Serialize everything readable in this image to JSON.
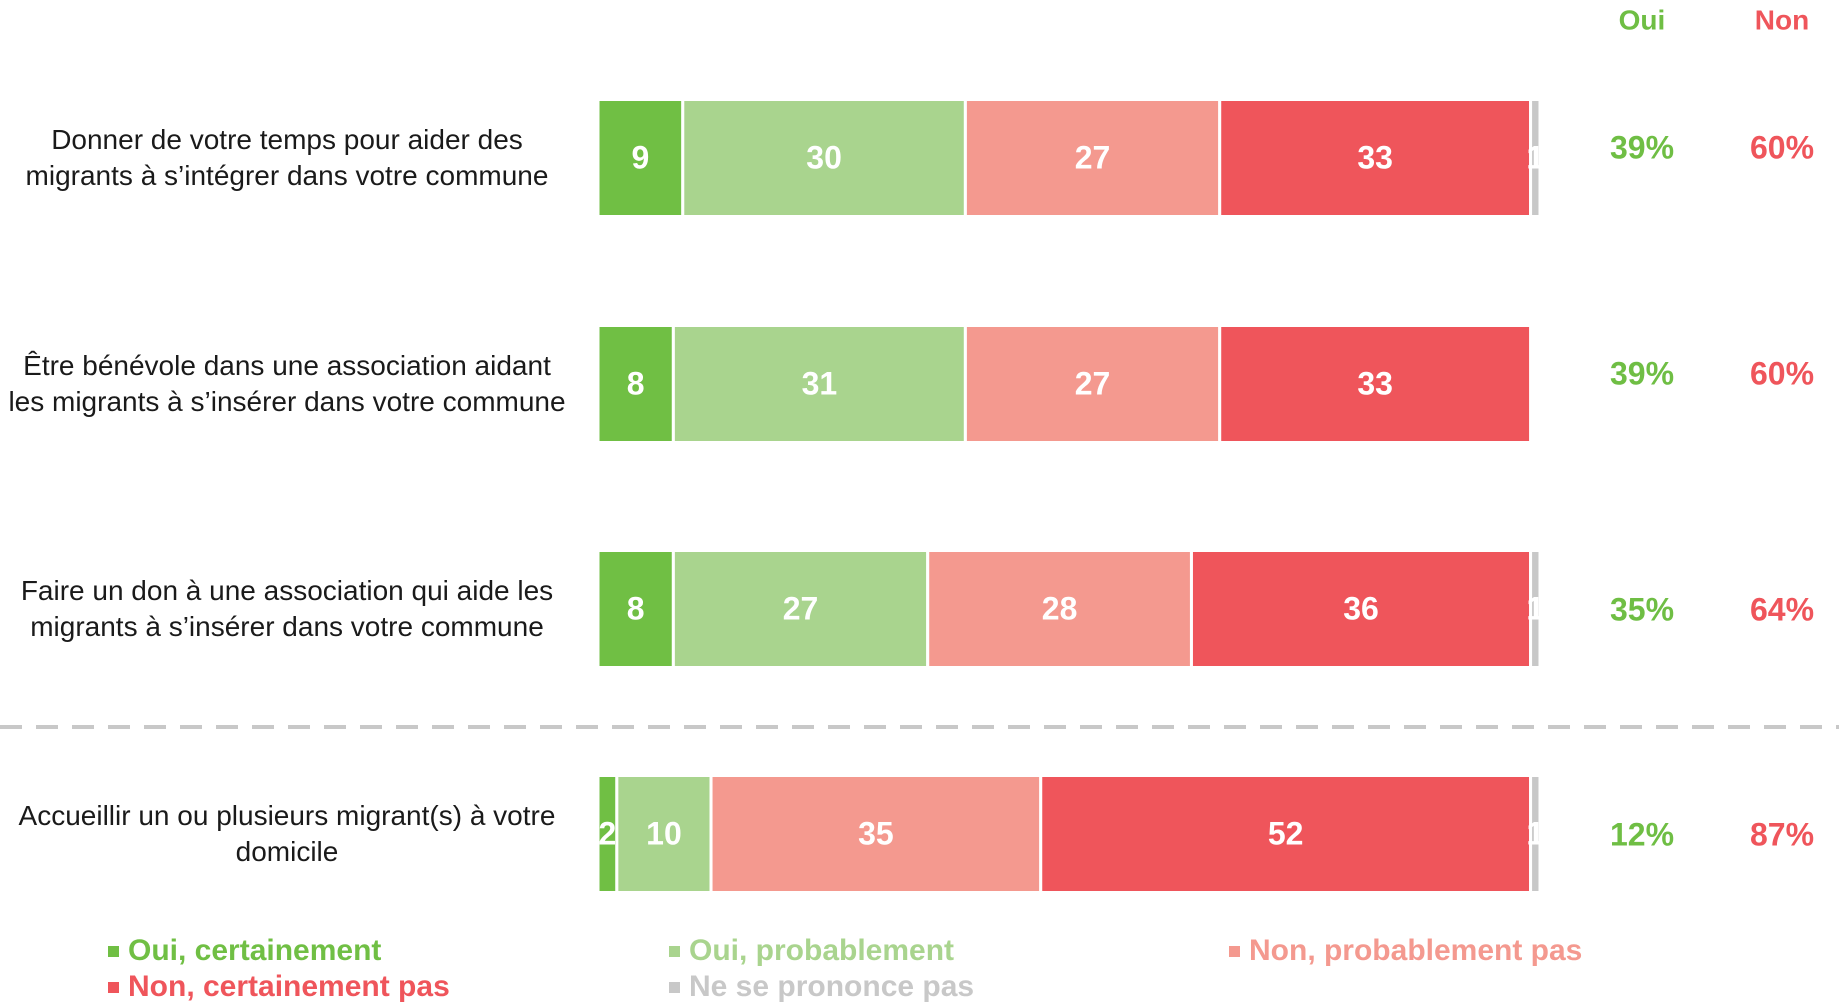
{
  "chart_data": {
    "type": "stacked-bar-horizontal",
    "categories": [
      "Donner de votre temps pour aider des migrants à s’intégrer dans votre commune",
      "Être bénévole dans une association aidant les migrants à s’insérer dans votre commune",
      "Faire un don à une association qui aide les migrants à s’insérer dans votre commune",
      "Accueillir un ou plusieurs migrant(s) à votre domicile"
    ],
    "series": [
      {
        "name": "Oui, certainement",
        "color": "#70bf44",
        "values": [
          9,
          8,
          8,
          2
        ]
      },
      {
        "name": "Oui, probablement",
        "color": "#a9d48e",
        "values": [
          30,
          31,
          27,
          10
        ]
      },
      {
        "name": "Non, probablement pas",
        "color": "#f4998f",
        "values": [
          27,
          27,
          28,
          35
        ]
      },
      {
        "name": "Non, certainement pas",
        "color": "#ef555b",
        "values": [
          33,
          33,
          36,
          52
        ]
      },
      {
        "name": "Ne se prononce pas",
        "color": "#c8c8c8",
        "values": [
          1,
          null,
          1,
          1
        ]
      }
    ],
    "xlim": [
      0,
      100
    ],
    "summary": [
      {
        "name": "Oui",
        "color": "#6fbe44",
        "values": [
          39,
          39,
          35,
          12
        ],
        "value_labels": [
          "39%",
          "39%",
          "35%",
          "12%"
        ]
      },
      {
        "name": "Non",
        "color": "#ef555b",
        "values": [
          60,
          60,
          64,
          87
        ],
        "value_labels": [
          "60%",
          "60%",
          "64%",
          "87%"
        ]
      }
    ]
  }
}
